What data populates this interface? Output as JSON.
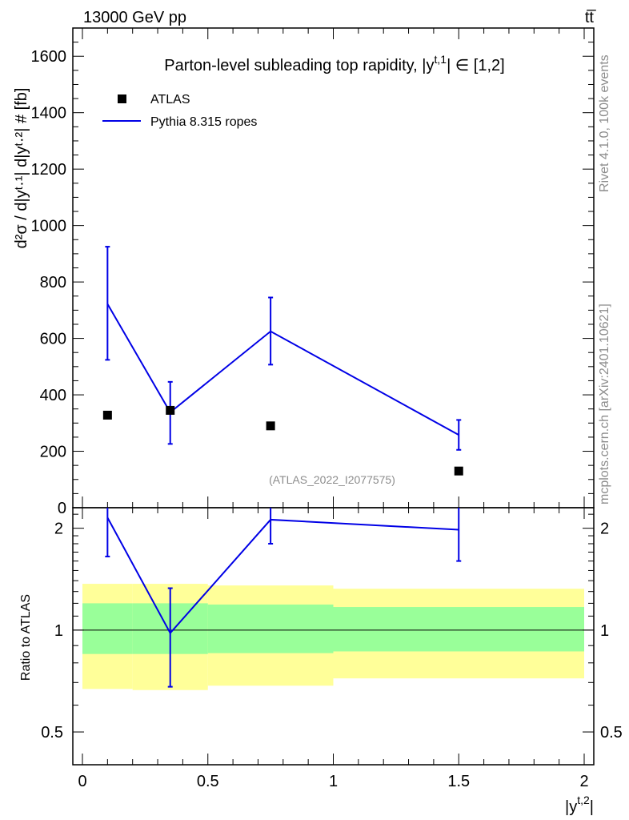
{
  "header": {
    "energy_label": "13000 GeV pp",
    "process_label": "tt̅"
  },
  "side_labels": {
    "rivet": "Rivet 4.1.0,  100k events",
    "url": "mcplots.cern.ch [arXiv:2401.10621]"
  },
  "colors": {
    "mc": "#0000e6",
    "data": "#000000",
    "band_inner": "#99ff99",
    "band_outer": "#ffff99"
  },
  "chart_data": [
    {
      "type": "scatter",
      "panel": "main",
      "title": "Parton-level subleading top rapidity, |y",
      "title_sup": "t,1",
      "title_tail": "| ∈ [1,2]",
      "ylabel": "d²σ / d|yᵗ·¹| d|yᵗ·²| # [fb]",
      "xlim": [
        0,
        2
      ],
      "ylim": [
        0,
        1700
      ],
      "yticks": [
        "0",
        "200",
        "400",
        "600",
        "800",
        "1000",
        "1200",
        "1400",
        "1600"
      ],
      "watermark": "(ATLAS_2022_I2077575)",
      "legend_position": "top-left",
      "series": [
        {
          "name": "ATLAS",
          "style": "markers",
          "x": [
            0.1,
            0.35,
            0.75,
            1.5
          ],
          "y": [
            328,
            345,
            290,
            130
          ]
        },
        {
          "name": "Pythia 8.315 ropes",
          "style": "line",
          "x": [
            0.1,
            0.35,
            0.75,
            1.5
          ],
          "y": [
            722,
            338,
            625,
            258
          ],
          "err_low": [
            198,
            112,
            118,
            53
          ],
          "err_high": [
            203,
            108,
            120,
            53
          ]
        }
      ]
    },
    {
      "type": "line",
      "panel": "ratio",
      "ylabel": "Ratio to ATLAS",
      "xlabel": "|y",
      "xlabel_sup": "t,2",
      "xlabel_tail": "|",
      "xlim": [
        0,
        2
      ],
      "ylim": [
        0.4,
        2.3
      ],
      "scale": "log",
      "yticks": [
        "0.5",
        "1",
        "2"
      ],
      "xticks": [
        "0",
        "0.5",
        "1",
        "1.5",
        "2"
      ],
      "bands": [
        {
          "x0": 0.0,
          "x1": 0.2,
          "inner": [
            0.85,
            1.2
          ],
          "outer": [
            0.67,
            1.37
          ]
        },
        {
          "x0": 0.2,
          "x1": 0.5,
          "inner": [
            0.85,
            1.2
          ],
          "outer": [
            0.665,
            1.37
          ]
        },
        {
          "x0": 0.5,
          "x1": 1.0,
          "inner": [
            0.855,
            1.19
          ],
          "outer": [
            0.685,
            1.355
          ]
        },
        {
          "x0": 1.0,
          "x1": 2.0,
          "inner": [
            0.865,
            1.17
          ],
          "outer": [
            0.72,
            1.325
          ]
        }
      ],
      "series": [
        {
          "name": "Pythia 8.315 ropes",
          "x": [
            0.1,
            0.35,
            0.75,
            1.5
          ],
          "y": [
            2.15,
            0.98,
            2.12,
            1.98
          ],
          "err_low": [
            0.5,
            0.3,
            0.32,
            0.38
          ],
          "err_high": [
            0.22,
            0.35,
            0.22,
            0.32
          ]
        }
      ]
    }
  ]
}
